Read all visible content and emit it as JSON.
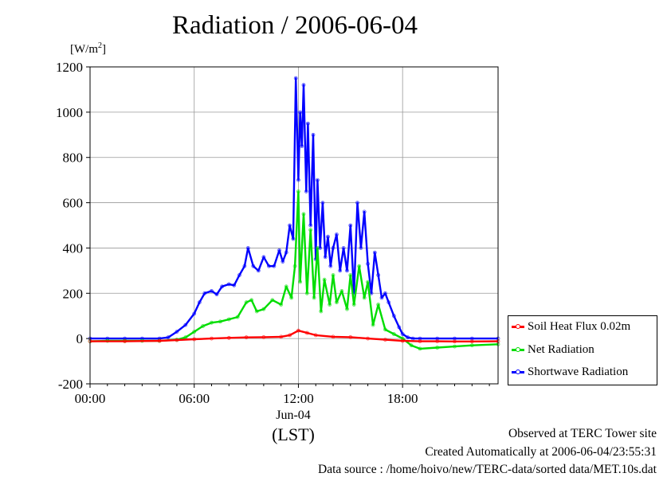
{
  "title": "Radiation / 2006-06-04",
  "unit": {
    "base": "[W/m",
    "sup": "2",
    "close": "]"
  },
  "date_label": "Jun-04",
  "tz_label": "(LST)",
  "footer": {
    "line1": "Observed at TERC Tower site",
    "line2": "Created Automatically at 2006-06-04/23:55:31",
    "line3": "Data source : /home/hoivo/new/TERC-data/sorted  data/MET.10s.dat"
  },
  "colors": {
    "soil": "#ff0000",
    "net": "#00dd00",
    "shortwave": "#0000ff"
  },
  "chart_data": {
    "type": "line",
    "title": "Radiation / 2006-06-04",
    "ylabel": "[W/m2]",
    "xlabel": "(LST)",
    "xlim": [
      0,
      23.5
    ],
    "ylim": [
      -200,
      1200
    ],
    "x_ticks": [
      {
        "value": 0,
        "label": "00:00"
      },
      {
        "value": 6,
        "label": "06:00"
      },
      {
        "value": 12,
        "label": "12:00"
      },
      {
        "value": 18,
        "label": "18:00"
      }
    ],
    "y_ticks": [
      -200,
      0,
      200,
      400,
      600,
      800,
      1000,
      1200
    ],
    "grid": true,
    "legend_position": "right-bottom",
    "series": [
      {
        "name": "Soil Heat Flux 0.02m",
        "color": "#ff0000",
        "x": [
          0,
          2,
          4,
          5,
          6,
          7,
          8,
          9,
          10,
          11,
          11.5,
          12,
          12.5,
          13,
          14,
          15,
          16,
          17,
          18,
          19,
          20,
          21,
          22,
          23.5
        ],
        "y": [
          -12,
          -12,
          -10,
          -7,
          -3,
          0,
          3,
          5,
          6,
          8,
          15,
          35,
          25,
          15,
          8,
          6,
          0,
          -5,
          -10,
          -12,
          -12,
          -13,
          -13,
          -12
        ]
      },
      {
        "name": "Net Radiation",
        "color": "#00dd00",
        "x": [
          0,
          1,
          2,
          3,
          4,
          5,
          5.5,
          6,
          6.5,
          7,
          7.5,
          8,
          8.5,
          9,
          9.3,
          9.6,
          10,
          10.5,
          11,
          11.3,
          11.6,
          11.8,
          12,
          12.1,
          12.3,
          12.5,
          12.7,
          12.9,
          13.1,
          13.3,
          13.5,
          13.8,
          14,
          14.2,
          14.5,
          14.8,
          15,
          15.2,
          15.5,
          15.8,
          16,
          16.3,
          16.6,
          17,
          17.5,
          18,
          18.5,
          19,
          20,
          21,
          22,
          23.5
        ],
        "y": [
          -12,
          -10,
          -10,
          -10,
          -10,
          -5,
          5,
          30,
          55,
          70,
          75,
          85,
          95,
          160,
          170,
          120,
          130,
          170,
          150,
          230,
          180,
          320,
          650,
          250,
          550,
          200,
          480,
          180,
          400,
          120,
          260,
          150,
          280,
          160,
          210,
          130,
          280,
          150,
          320,
          180,
          250,
          60,
          150,
          40,
          20,
          0,
          -30,
          -45,
          -40,
          -35,
          -30,
          -25
        ]
      },
      {
        "name": "Shortwave Radiation",
        "color": "#0000ff",
        "x": [
          0,
          1,
          2,
          3,
          4,
          4.5,
          5,
          5.5,
          6,
          6.3,
          6.6,
          7,
          7.3,
          7.6,
          8,
          8.3,
          8.6,
          8.9,
          9.1,
          9.4,
          9.7,
          10,
          10.3,
          10.6,
          10.9,
          11.1,
          11.3,
          11.5,
          11.7,
          11.85,
          12,
          12.1,
          12.2,
          12.3,
          12.45,
          12.55,
          12.7,
          12.85,
          13,
          13.1,
          13.25,
          13.4,
          13.55,
          13.7,
          13.85,
          14,
          14.2,
          14.4,
          14.6,
          14.8,
          15,
          15.2,
          15.4,
          15.6,
          15.8,
          16,
          16.2,
          16.4,
          16.6,
          16.8,
          17,
          17.2,
          17.5,
          17.8,
          18,
          18.3,
          18.6,
          19,
          20,
          21,
          22,
          23.5
        ],
        "y": [
          0,
          0,
          0,
          0,
          0,
          5,
          30,
          60,
          110,
          160,
          200,
          210,
          195,
          230,
          240,
          235,
          280,
          320,
          400,
          320,
          300,
          360,
          320,
          320,
          390,
          340,
          380,
          500,
          440,
          1150,
          700,
          1000,
          850,
          1120,
          650,
          950,
          500,
          900,
          350,
          700,
          400,
          600,
          360,
          450,
          320,
          400,
          460,
          300,
          400,
          300,
          500,
          200,
          600,
          400,
          560,
          330,
          200,
          380,
          280,
          180,
          200,
          160,
          100,
          50,
          20,
          5,
          0,
          0,
          0,
          0,
          0,
          0
        ]
      }
    ]
  }
}
